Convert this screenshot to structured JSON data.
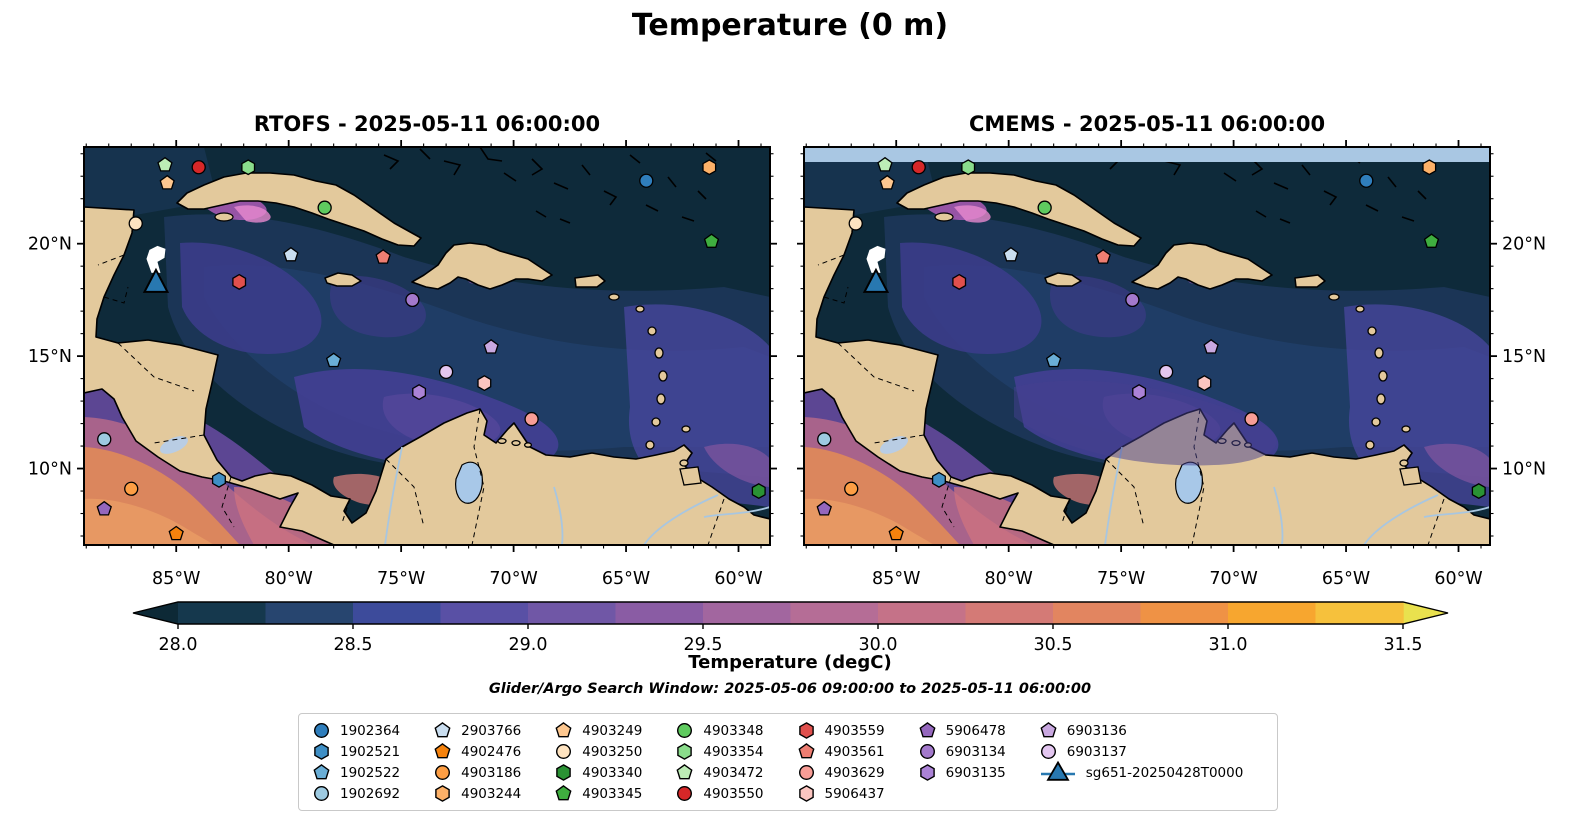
{
  "chart_data": {
    "type": "map_scatter",
    "suptitle": "Temperature (0 m)",
    "panels": [
      {
        "id": "rtofs",
        "model": "RTOFS",
        "datetime": "2025-05-11 06:00:00",
        "title": "RTOFS - 2025-05-11 06:00:00",
        "y_labels_side": "left",
        "top_band": false
      },
      {
        "id": "cmems",
        "model": "CMEMS",
        "datetime": "2025-05-11 06:00:00",
        "title": "CMEMS - 2025-05-11 06:00:00",
        "y_labels_side": "right",
        "top_band": true
      }
    ],
    "extent": {
      "lon_min": -89.1,
      "lon_max": -58.6,
      "lat_min": 6.6,
      "lat_max": 24.3
    },
    "x_ticks": [
      {
        "value": -85,
        "label": "85°W"
      },
      {
        "value": -80,
        "label": "80°W"
      },
      {
        "value": -75,
        "label": "75°W"
      },
      {
        "value": -70,
        "label": "70°W"
      },
      {
        "value": -65,
        "label": "65°W"
      },
      {
        "value": -60,
        "label": "60°W"
      }
    ],
    "y_ticks": [
      {
        "value": 20,
        "label": "20°N"
      },
      {
        "value": 15,
        "label": "15°N"
      },
      {
        "value": 10,
        "label": "10°N"
      }
    ],
    "colorbar": {
      "label": "Temperature (degC)",
      "vmin": 28.0,
      "vmax": 31.5,
      "segment_step": 0.25,
      "tick_labels": [
        "28.0",
        "28.5",
        "29.0",
        "29.5",
        "30.0",
        "30.5",
        "31.0",
        "31.5"
      ],
      "tick_values": [
        28.0,
        28.5,
        29.0,
        29.5,
        30.0,
        30.5,
        31.0,
        31.5
      ],
      "segment_colors": [
        "#15384d",
        "#27456f",
        "#3d4b9b",
        "#5950a5",
        "#7057a6",
        "#8a5ca4",
        "#a2669f",
        "#b56d96",
        "#c57288",
        "#d47a76",
        "#e28560",
        "#ef9245",
        "#f7a62f",
        "#f6c13c"
      ],
      "under_color": "#0d2936",
      "over_color": "#e9e14e"
    },
    "search_window_note": "Glider/Argo Search Window: 2025-05-06 09:00:00 to 2025-05-11 06:00:00",
    "platforms": [
      {
        "id": "1902364",
        "shape": "circle",
        "color": "#2f7ebc",
        "lon": -64.1,
        "lat": 22.8
      },
      {
        "id": "1902521",
        "shape": "hexagon",
        "color": "#3f8fc5",
        "lon": -83.1,
        "lat": 9.5
      },
      {
        "id": "1902522",
        "shape": "pentagon",
        "color": "#6aaed6",
        "lon": -78.0,
        "lat": 14.8
      },
      {
        "id": "1902692",
        "shape": "circle",
        "color": "#9dcae1",
        "lon": -88.2,
        "lat": 11.3
      },
      {
        "id": "2903766",
        "shape": "pentagon",
        "color": "#cadef0",
        "lon": -79.9,
        "lat": 19.5
      },
      {
        "id": "4902476",
        "shape": "pentagon",
        "color": "#f5820d",
        "lon": -85.0,
        "lat": 7.1
      },
      {
        "id": "4903186",
        "shape": "circle",
        "color": "#fd9e44",
        "lon": -87.0,
        "lat": 9.1
      },
      {
        "id": "4903244",
        "shape": "hexagon",
        "color": "#fdb168",
        "lon": -61.3,
        "lat": 23.4
      },
      {
        "id": "4903249",
        "shape": "pentagon",
        "color": "#fdc78f",
        "lon": -85.4,
        "lat": 22.7
      },
      {
        "id": "4903250",
        "shape": "circle",
        "color": "#fee3c0",
        "lon": -86.8,
        "lat": 20.9
      },
      {
        "id": "4903340",
        "shape": "hexagon",
        "color": "#2a9234",
        "lon": -59.1,
        "lat": 9.0
      },
      {
        "id": "4903345",
        "shape": "pentagon",
        "color": "#3fae3f",
        "lon": -61.2,
        "lat": 20.1
      },
      {
        "id": "4903348",
        "shape": "circle",
        "color": "#5fcb5f",
        "lon": -78.4,
        "lat": 21.6
      },
      {
        "id": "4903354",
        "shape": "hexagon",
        "color": "#8adc8b",
        "lon": -81.8,
        "lat": 23.4
      },
      {
        "id": "4903472",
        "shape": "pentagon",
        "color": "#bdedb6",
        "lon": -85.5,
        "lat": 23.5
      },
      {
        "id": "4903550",
        "shape": "circle",
        "color": "#d62728",
        "lon": -84.0,
        "lat": 23.4
      },
      {
        "id": "4903559",
        "shape": "hexagon",
        "color": "#e0504d",
        "lon": -82.2,
        "lat": 18.3
      },
      {
        "id": "4903561",
        "shape": "pentagon",
        "color": "#ee7e72",
        "lon": -75.8,
        "lat": 19.4
      },
      {
        "id": "4903629",
        "shape": "circle",
        "color": "#f89d96",
        "lon": -69.2,
        "lat": 12.2
      },
      {
        "id": "5906437",
        "shape": "hexagon",
        "color": "#fcc5c0",
        "lon": -71.3,
        "lat": 13.8
      },
      {
        "id": "5906478",
        "shape": "pentagon",
        "color": "#9467bd",
        "lon": -88.2,
        "lat": 8.2
      },
      {
        "id": "6903134",
        "shape": "circle",
        "color": "#a379cc",
        "lon": -74.5,
        "lat": 17.5
      },
      {
        "id": "6903135",
        "shape": "hexagon",
        "color": "#ab82d6",
        "lon": -74.2,
        "lat": 13.4
      },
      {
        "id": "6903136",
        "shape": "pentagon",
        "color": "#c9a8e0",
        "lon": -71.0,
        "lat": 15.4
      },
      {
        "id": "6903137",
        "shape": "circle",
        "color": "#e3c6f0",
        "lon": -73.0,
        "lat": 14.3
      }
    ],
    "glider": {
      "id": "sg651-20250428T0000",
      "shape": "triangle",
      "color": "#2878b0",
      "lon": -85.9,
      "lat": 18.3,
      "track_color": "#ffffff"
    },
    "legend_columns": [
      [
        "1902364",
        "1902521",
        "1902522",
        "1902692"
      ],
      [
        "2903766",
        "4902476",
        "4903186",
        "4903244"
      ],
      [
        "4903249",
        "4903250",
        "4903340",
        "4903345"
      ],
      [
        "4903348",
        "4903354",
        "4903472",
        "4903550"
      ],
      [
        "4903559",
        "4903561",
        "4903629",
        "5906437"
      ],
      [
        "5906478",
        "6903134",
        "6903135"
      ],
      [
        "6903136",
        "6903137",
        "sg651-20250428T0000"
      ]
    ],
    "palette": {
      "land": "#e3c99c",
      "ocean_atlantic": "#0e2a3a",
      "ocean_caribbean": "#1b3556",
      "cmems_missing_band": "#a9c7e3",
      "lake": "#a8c8e8",
      "river": "#a8c6e0"
    }
  }
}
